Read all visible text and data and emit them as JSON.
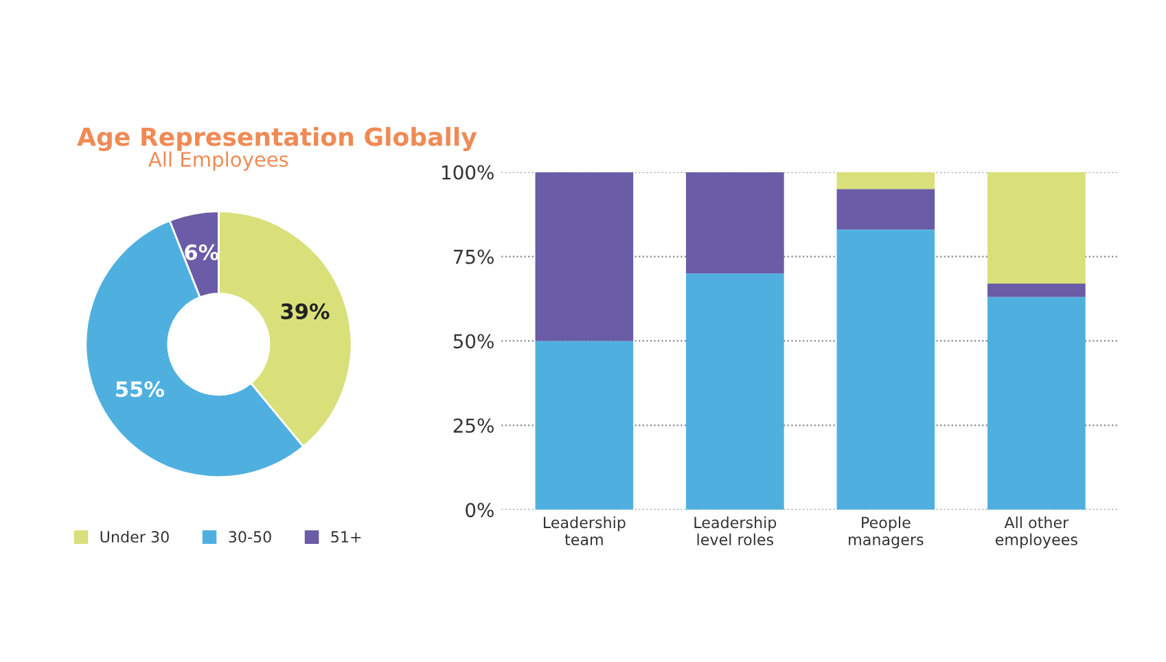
{
  "chart_data": [
    {
      "type": "donut",
      "title": "Age Representation Globally",
      "subtitle": "All Employees",
      "categories": [
        "Under 30",
        "30-50",
        "51+"
      ],
      "values": [
        39,
        55,
        6
      ],
      "colors": [
        "#d9e07a",
        "#4fb0e0",
        "#6a5ca6"
      ],
      "value_labels": [
        "39%",
        "55%",
        "6%"
      ],
      "legend": "bottom"
    },
    {
      "type": "bar",
      "stacked": true,
      "categories": [
        "Leadership\nteam",
        "Leadership\nlevel roles",
        "People\nmanagers",
        "All other\nemployees"
      ],
      "series": [
        {
          "color": "#4fb0e0",
          "values": [
            50,
            70,
            83,
            63
          ]
        },
        {
          "color": "#6a5ca6",
          "values": [
            50,
            30,
            12,
            4
          ]
        },
        {
          "color": "#d9e07a",
          "values": [
            0,
            0,
            5,
            33
          ]
        }
      ],
      "ylim": [
        0,
        100
      ],
      "yticks": [
        {
          "value": 0,
          "label": "0%"
        },
        {
          "value": 25,
          "label": "25%"
        },
        {
          "value": 50,
          "label": "50%"
        },
        {
          "value": 75,
          "label": "75%"
        },
        {
          "value": 100,
          "label": "100%"
        }
      ],
      "grid": "y"
    }
  ]
}
